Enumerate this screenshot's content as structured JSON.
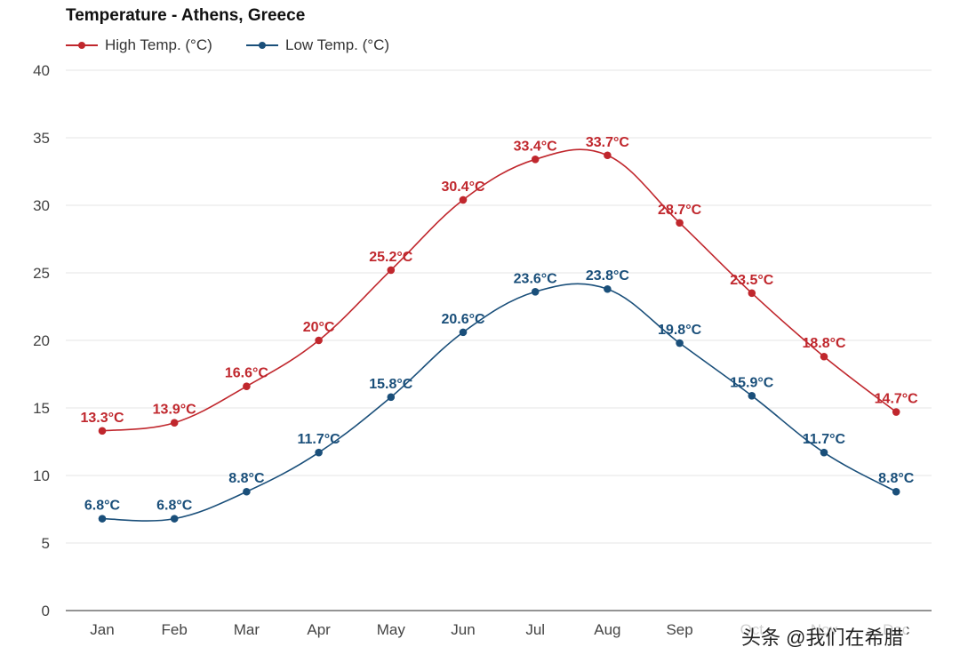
{
  "chart_data": {
    "type": "line",
    "title": "Temperature - Athens, Greece",
    "categories": [
      "Jan",
      "Feb",
      "Mar",
      "Apr",
      "May",
      "Jun",
      "Jul",
      "Aug",
      "Sep",
      "Oct",
      "Nov",
      "Dec"
    ],
    "ylim": [
      0,
      40
    ],
    "yticks": [
      0,
      5,
      10,
      15,
      20,
      25,
      30,
      35,
      40
    ],
    "grid": true,
    "legend_position": "top-left",
    "xlabel": "",
    "ylabel": "",
    "unit_suffix": "°C",
    "series": [
      {
        "name": "High Temp. (°C)",
        "color": "#c0272d",
        "values": [
          13.3,
          13.9,
          16.6,
          20,
          25.2,
          30.4,
          33.4,
          33.7,
          28.7,
          23.5,
          18.8,
          14.7
        ]
      },
      {
        "name": "Low Temp. (°C)",
        "color": "#1a4f7a",
        "values": [
          6.8,
          6.8,
          8.8,
          11.7,
          15.8,
          20.6,
          23.6,
          23.8,
          19.8,
          15.9,
          11.7,
          8.8
        ]
      }
    ]
  },
  "watermark": "头条 @我们在希腊"
}
